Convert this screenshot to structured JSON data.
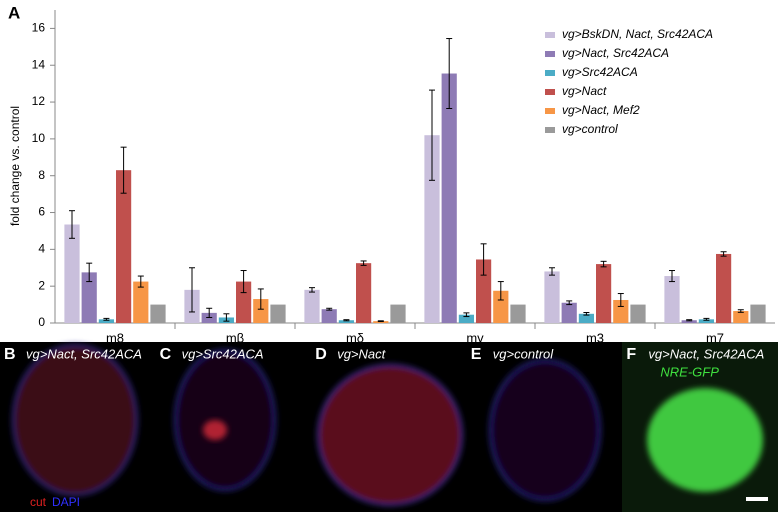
{
  "chart_data": {
    "type": "bar",
    "title": "A",
    "ylabel": "fold change vs. control",
    "categories": [
      "m8",
      "mβ",
      "mδ",
      "mγ",
      "m3",
      "m7"
    ],
    "ylim": [
      0,
      17
    ],
    "yticks": [
      0,
      2,
      4,
      6,
      8,
      10,
      12,
      14,
      16
    ],
    "series": [
      {
        "name": "vg>BskDN, Nact, Src42ACA",
        "color": "#c9bfdc",
        "values": [
          5.35,
          1.8,
          1.8,
          10.2,
          2.8,
          2.55
        ],
        "errors": [
          0.75,
          1.2,
          0.12,
          2.45,
          0.2,
          0.3
        ]
      },
      {
        "name": "vg>Nact, Src42ACA",
        "color": "#8e7bb5",
        "values": [
          2.75,
          0.55,
          0.75,
          13.55,
          1.1,
          0.15
        ],
        "errors": [
          0.5,
          0.25,
          0.05,
          1.9,
          0.1,
          0.03
        ]
      },
      {
        "name": "vg>Src42ACA",
        "color": "#4bacc6",
        "values": [
          0.2,
          0.3,
          0.15,
          0.45,
          0.5,
          0.2
        ],
        "errors": [
          0.05,
          0.2,
          0.03,
          0.1,
          0.07,
          0.05
        ]
      },
      {
        "name": "vg>Nact",
        "color": "#c0504d",
        "values": [
          8.3,
          2.25,
          3.25,
          3.45,
          3.2,
          3.75
        ],
        "errors": [
          1.25,
          0.6,
          0.12,
          0.85,
          0.15,
          0.12
        ]
      },
      {
        "name": "vg>Nact, Mef2",
        "color": "#f79646",
        "values": [
          2.25,
          1.3,
          0.1,
          1.75,
          1.25,
          0.65
        ],
        "errors": [
          0.3,
          0.55,
          0.02,
          0.5,
          0.35,
          0.07
        ]
      },
      {
        "name": "vg>control",
        "color": "#9a9a9a",
        "values": [
          1,
          1,
          1,
          1,
          1,
          1
        ]
      }
    ]
  },
  "panels": [
    {
      "letter": "B",
      "caption": "vg>Nact, Src42ACA"
    },
    {
      "letter": "C",
      "caption": "vg>Src42ACA"
    },
    {
      "letter": "D",
      "caption": "vg>Nact"
    },
    {
      "letter": "E",
      "caption": "vg>control"
    },
    {
      "letter": "F",
      "caption": "vg>Nact, Src42ACA",
      "extra": "NRE-GFP"
    }
  ],
  "stain": {
    "red": "cut",
    "blue": "DAPI"
  }
}
